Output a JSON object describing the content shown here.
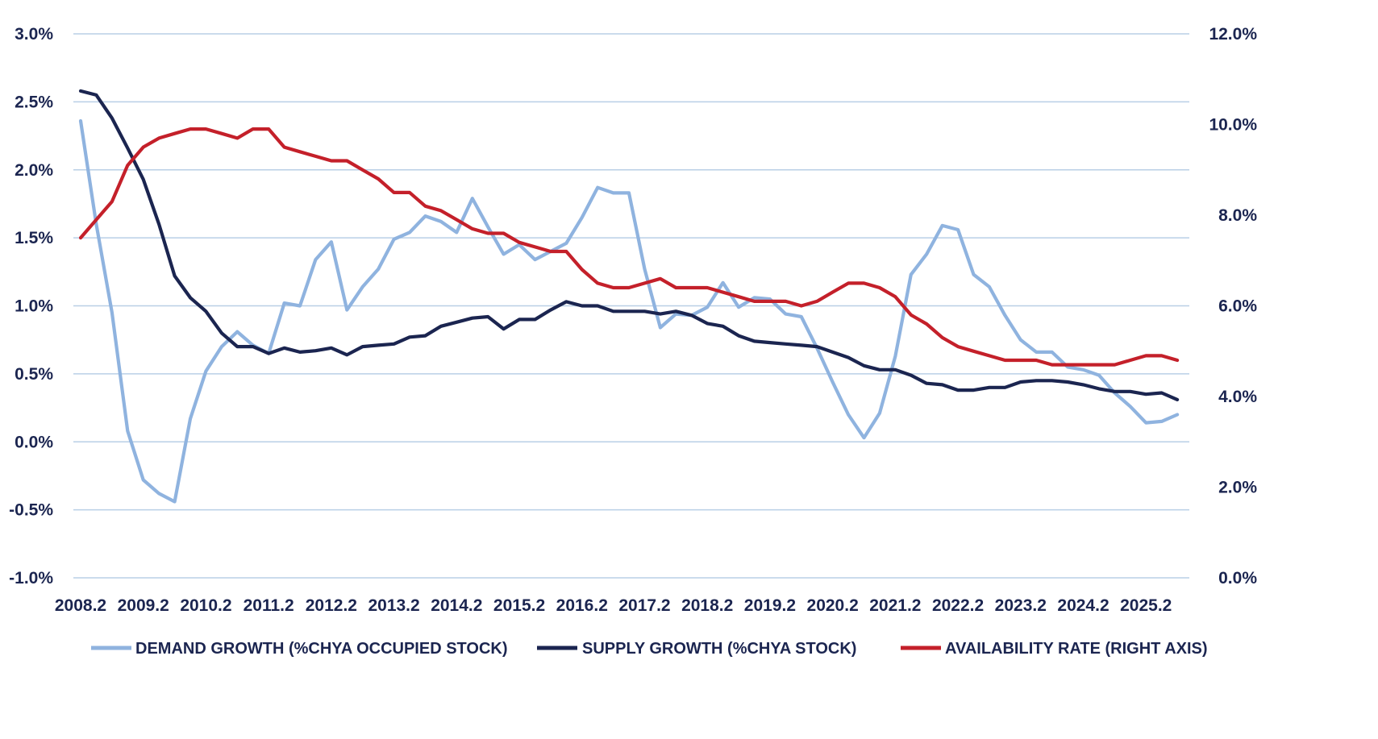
{
  "chart_data": {
    "type": "line",
    "title": "",
    "xlabel": "",
    "ylabel": "",
    "ylim": [
      -1.0,
      3.0
    ],
    "ylim_right": [
      0.0,
      12.0
    ],
    "grid": true,
    "legend_position": "bottom",
    "x_tick_labels": [
      "2008.2",
      "2009.2",
      "2010.2",
      "2011.2",
      "2012.2",
      "2013.2",
      "2014.2",
      "2015.2",
      "2016.2",
      "2017.2",
      "2018.2",
      "2019.2",
      "2020.2",
      "2021.2",
      "2022.2",
      "2023.2",
      "2024.2",
      "2025.2"
    ],
    "y_tick_labels_left": [
      "3.0%",
      "2.5%",
      "2.0%",
      "1.5%",
      "1.0%",
      "0.5%",
      "0.0%",
      "-0.5%",
      "-1.0%"
    ],
    "y_tick_labels_right": [
      "12.0%",
      "10.0%",
      "8.0%",
      "6.0%",
      "4.0%",
      "2.0%",
      "0.0%"
    ],
    "series": [
      {
        "name": "DEMAND GROWTH (%CHYA OCCUPIED STOCK)",
        "axis": "left",
        "color": "#8fb3df",
        "values": [
          2.36,
          1.6,
          0.95,
          0.08,
          -0.28,
          -0.38,
          -0.44,
          0.17,
          0.52,
          0.7,
          0.81,
          0.71,
          0.65,
          1.02,
          1.0,
          1.34,
          1.47,
          0.97,
          1.14,
          1.27,
          1.49,
          1.54,
          1.66,
          1.62,
          1.54,
          1.79,
          1.58,
          1.38,
          1.45,
          1.34,
          1.4,
          1.46,
          1.65,
          1.87,
          1.83,
          1.83,
          1.27,
          0.84,
          0.94,
          0.93,
          0.99,
          1.17,
          0.99,
          1.06,
          1.05,
          0.94,
          0.92,
          0.69,
          0.44,
          0.2,
          0.03,
          0.21,
          0.63,
          1.23,
          1.38,
          1.59,
          1.56,
          1.23,
          1.14,
          0.93,
          0.75,
          0.66,
          0.66,
          0.55,
          0.53,
          0.49,
          0.36,
          0.26,
          0.14,
          0.15,
          0.2
        ]
      },
      {
        "name": "SUPPLY GROWTH (%CHYA STOCK)",
        "axis": "left",
        "color": "#1b2550",
        "values": [
          2.58,
          2.55,
          2.38,
          2.16,
          1.93,
          1.6,
          1.22,
          1.06,
          0.96,
          0.8,
          0.7,
          0.7,
          0.65,
          0.69,
          0.66,
          0.67,
          0.69,
          0.64,
          0.7,
          0.71,
          0.72,
          0.77,
          0.78,
          0.85,
          0.88,
          0.91,
          0.92,
          0.83,
          0.9,
          0.9,
          0.97,
          1.03,
          1.0,
          1.0,
          0.96,
          0.96,
          0.96,
          0.94,
          0.96,
          0.93,
          0.87,
          0.85,
          0.78,
          0.74,
          0.73,
          0.72,
          0.71,
          0.7,
          0.66,
          0.62,
          0.56,
          0.53,
          0.53,
          0.49,
          0.43,
          0.42,
          0.38,
          0.38,
          0.4,
          0.4,
          0.44,
          0.45,
          0.45,
          0.44,
          0.42,
          0.39,
          0.37,
          0.37,
          0.35,
          0.36,
          0.31
        ]
      },
      {
        "name": "AVAILABILITY RATE (RIGHT AXIS)",
        "axis": "right",
        "color": "#c4202a",
        "values": [
          7.5,
          7.9,
          8.3,
          9.1,
          9.5,
          9.7,
          9.8,
          9.9,
          9.9,
          9.8,
          9.7,
          9.9,
          9.9,
          9.5,
          9.4,
          9.3,
          9.2,
          9.2,
          9.0,
          8.8,
          8.5,
          8.5,
          8.2,
          8.1,
          7.9,
          7.7,
          7.6,
          7.6,
          7.4,
          7.3,
          7.2,
          7.2,
          6.8,
          6.5,
          6.4,
          6.4,
          6.5,
          6.6,
          6.4,
          6.4,
          6.4,
          6.3,
          6.2,
          6.1,
          6.1,
          6.1,
          6.0,
          6.1,
          6.3,
          6.5,
          6.5,
          6.4,
          6.2,
          5.8,
          5.6,
          5.3,
          5.1,
          5.0,
          4.9,
          4.8,
          4.8,
          4.8,
          4.7,
          4.7,
          4.7,
          4.7,
          4.7,
          4.8,
          4.9,
          4.9,
          4.8
        ]
      }
    ]
  }
}
